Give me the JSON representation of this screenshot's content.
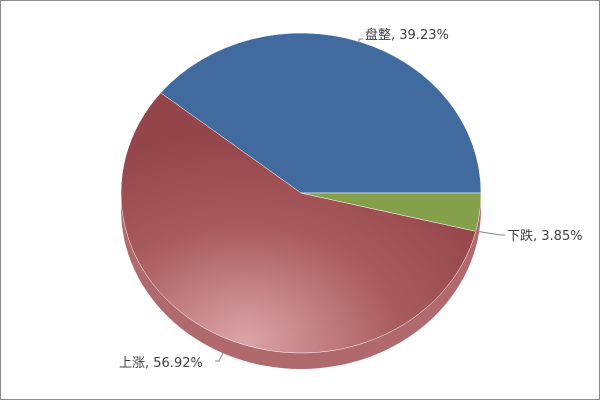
{
  "chart_data": {
    "type": "pie",
    "title": "",
    "slices": [
      {
        "label": "盘整",
        "value": 39.23,
        "display": "盘整, 39.23%",
        "color": "#416a9e"
      },
      {
        "label": "上涨",
        "value": 56.92,
        "display": "上涨, 56.92%",
        "color": "#9a4648"
      },
      {
        "label": "下跌",
        "value": 3.85,
        "display": "下跌, 3.85%",
        "color": "#84a04a"
      }
    ],
    "start_angle": "3 o'clock, counterclockwise",
    "style": "3d-tilted",
    "legend": "none"
  }
}
